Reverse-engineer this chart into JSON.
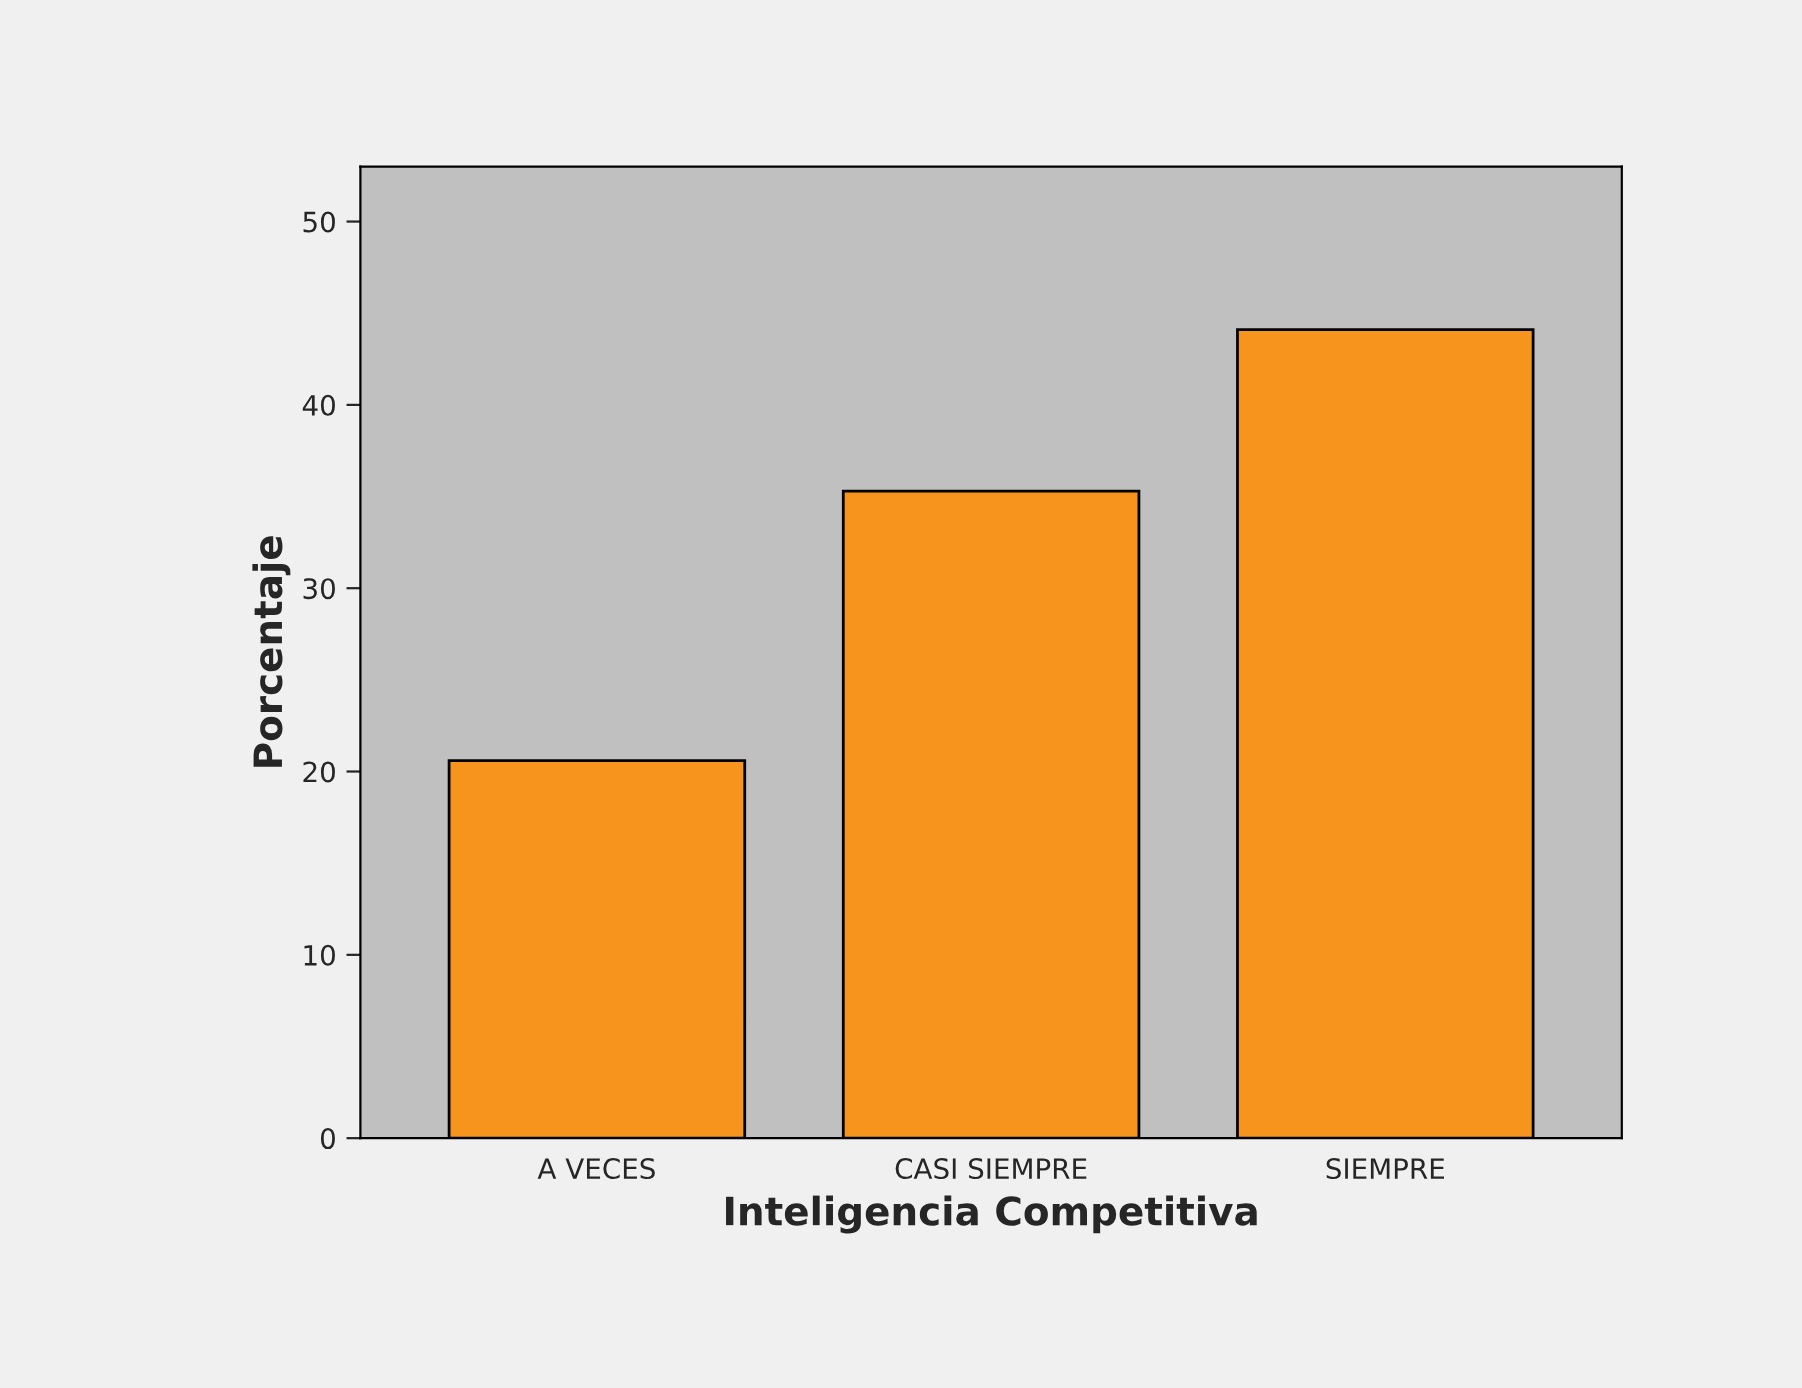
{
  "chart_data": {
    "type": "bar",
    "xlabel": "Inteligencia Competitiva",
    "ylabel": "Porcentaje",
    "categories": [
      "A VECES",
      "CASI SIEMPRE",
      "SIEMPRE"
    ],
    "values": [
      20.6,
      35.3,
      44.1
    ],
    "color": "#f7941d",
    "ylim": [
      0,
      53
    ],
    "yticks": [
      0,
      10,
      20,
      30,
      40,
      50
    ],
    "grid": false,
    "legend": false
  }
}
